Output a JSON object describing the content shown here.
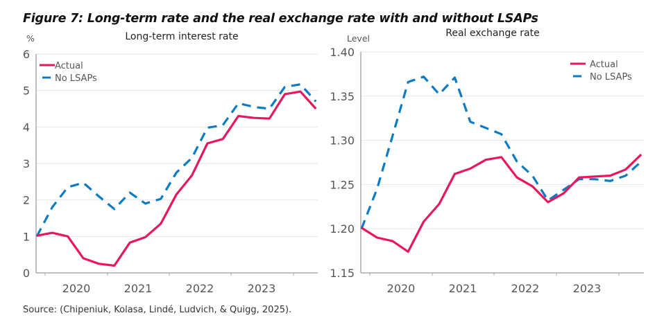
{
  "figure": {
    "title": "Figure 7: Long-term rate and the real exchange rate with and without LSAPs",
    "source": "Source: (Chipeniuk, Kolasa, Lindé, Ludvich, & Quigg, 2025)."
  },
  "colors": {
    "actual": "#e8175d",
    "no_lsaps": "#0a7bc4",
    "grid": "#e6e6e6",
    "axis": "#aaaaaa"
  },
  "chart_data": [
    {
      "type": "line",
      "title": "Long-term interest rate",
      "ylabel": "%",
      "xlabel": "",
      "ylim": [
        0,
        6
      ],
      "yticks": [
        "0",
        "1",
        "2",
        "3",
        "4",
        "5",
        "6"
      ],
      "ytick_values": [
        0,
        1,
        2,
        3,
        4,
        5,
        6
      ],
      "xtick_labels": [
        "2020",
        "2021",
        "2022",
        "2023"
      ],
      "x": [
        "2019Q4",
        "2020Q1",
        "2020Q2",
        "2020Q3",
        "2020Q4",
        "2021Q1",
        "2021Q2",
        "2021Q3",
        "2021Q4",
        "2022Q1",
        "2022Q2",
        "2022Q3",
        "2022Q4",
        "2023Q1",
        "2023Q2",
        "2023Q3",
        "2023Q4",
        "2024Q1",
        "2024Q2"
      ],
      "grid": true,
      "legend": {
        "position": "top-left",
        "entries": [
          "Actual",
          "No LSAPs"
        ]
      },
      "series": [
        {
          "name": "Actual",
          "style": "solid",
          "values": [
            1.02,
            1.1,
            1.0,
            0.4,
            0.25,
            0.2,
            0.83,
            0.98,
            1.35,
            2.15,
            2.67,
            3.55,
            3.67,
            4.3,
            4.25,
            4.23,
            4.9,
            4.97,
            4.5
          ]
        },
        {
          "name": "No LSAPs",
          "style": "dashed",
          "values": [
            1.0,
            1.8,
            2.35,
            2.47,
            2.1,
            1.75,
            2.2,
            1.9,
            2.03,
            2.75,
            3.15,
            3.98,
            4.05,
            4.65,
            4.55,
            4.5,
            5.1,
            5.17,
            4.7
          ]
        }
      ]
    },
    {
      "type": "line",
      "title": "Real exchange rate",
      "ylabel": "Level",
      "xlabel": "",
      "ylim": [
        1.15,
        1.4
      ],
      "yticks": [
        "1.15",
        "1.20",
        "1.25",
        "1.30",
        "1.35",
        "1.40"
      ],
      "ytick_values": [
        1.15,
        1.2,
        1.25,
        1.3,
        1.35,
        1.4
      ],
      "xtick_labels": [
        "2020",
        "2021",
        "2022",
        "2023"
      ],
      "x": [
        "2019Q4",
        "2020Q1",
        "2020Q2",
        "2020Q3",
        "2020Q4",
        "2021Q1",
        "2021Q2",
        "2021Q3",
        "2021Q4",
        "2022Q1",
        "2022Q2",
        "2022Q3",
        "2022Q4",
        "2023Q1",
        "2023Q2",
        "2023Q3",
        "2023Q4",
        "2024Q1",
        "2024Q2"
      ],
      "grid": true,
      "legend": {
        "position": "top-right",
        "entries": [
          "Actual",
          "No LSAPs"
        ]
      },
      "series": [
        {
          "name": "Actual",
          "style": "solid",
          "values": [
            1.201,
            1.19,
            1.186,
            1.174,
            1.208,
            1.228,
            1.262,
            1.268,
            1.278,
            1.281,
            1.258,
            1.248,
            1.23,
            1.24,
            1.258,
            1.259,
            1.26,
            1.267,
            1.284
          ]
        },
        {
          "name": "No LSAPs",
          "style": "dashed",
          "values": [
            1.2,
            1.245,
            1.305,
            1.366,
            1.372,
            1.352,
            1.371,
            1.321,
            1.314,
            1.307,
            1.276,
            1.26,
            1.232,
            1.244,
            1.256,
            1.256,
            1.254,
            1.26,
            1.276
          ]
        }
      ]
    }
  ]
}
